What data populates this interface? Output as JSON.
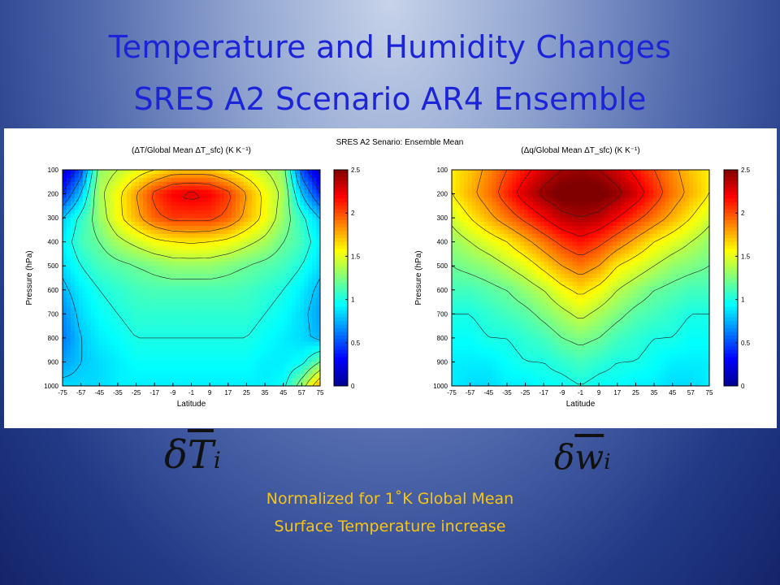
{
  "slide": {
    "title_line1": "Temperature and Humidity Changes",
    "title_line2": "SRES A2 Scenario AR4 Ensemble",
    "figure_title": "SRES A2 Senario: Ensemble Mean",
    "symbol_left": "δT̄i",
    "symbol_right": "δw̄i",
    "caption_line1": "Normalized for 1˚K Global Mean",
    "caption_line2": "Surface Temperature increase"
  },
  "colors": {
    "title": "#1c24d8",
    "caption": "#f5c518",
    "colormap": [
      "#00008f",
      "#0000ff",
      "#0080ff",
      "#00ffff",
      "#80ff80",
      "#ffff00",
      "#ff8000",
      "#ff0000",
      "#800000"
    ]
  },
  "chart_data": [
    {
      "type": "heatmap",
      "title": "(ΔT/Global Mean ΔT_sfc) (K K⁻¹)",
      "xlabel": "Latitude",
      "ylabel": "Pressure (hPa)",
      "x_ticks": [
        "-75",
        "-57",
        "-45",
        "-35",
        "-25",
        "-17",
        "-9",
        "-1",
        "9",
        "17",
        "25",
        "35",
        "45",
        "57",
        "75"
      ],
      "y_ticks": [
        "100",
        "200",
        "300",
        "400",
        "500",
        "600",
        "700",
        "800",
        "900",
        "1000"
      ],
      "colorbar_ticks": [
        "0",
        "0.5",
        "1",
        "1.5",
        "2",
        "2.5"
      ],
      "colorbar_range": [
        0,
        2.5
      ],
      "contour_levels": [
        0.2,
        0.4,
        0.6,
        0.8,
        1.0,
        1.2,
        1.4,
        1.6,
        1.8,
        2.0,
        2.2
      ],
      "grid": [
        [
          0.15,
          0.5,
          1.3,
          1.4,
          1.5,
          1.6,
          1.7,
          1.7,
          1.7,
          1.6,
          1.5,
          1.4,
          1.3,
          0.5,
          0.15
        ],
        [
          0.4,
          0.8,
          1.35,
          1.55,
          1.8,
          2.05,
          2.2,
          2.25,
          2.2,
          2.05,
          1.8,
          1.55,
          1.35,
          0.8,
          0.4
        ],
        [
          0.8,
          1.05,
          1.3,
          1.55,
          1.75,
          1.95,
          2.05,
          2.05,
          2.05,
          1.95,
          1.75,
          1.55,
          1.3,
          1.05,
          0.8
        ],
        [
          0.9,
          1.1,
          1.2,
          1.35,
          1.45,
          1.55,
          1.6,
          1.62,
          1.6,
          1.55,
          1.45,
          1.35,
          1.2,
          1.1,
          0.9
        ],
        [
          0.85,
          1.0,
          1.1,
          1.15,
          1.2,
          1.25,
          1.3,
          1.3,
          1.3,
          1.25,
          1.2,
          1.15,
          1.1,
          1.0,
          0.85
        ],
        [
          0.75,
          0.9,
          1.0,
          1.05,
          1.1,
          1.12,
          1.12,
          1.12,
          1.12,
          1.12,
          1.1,
          1.05,
          1.0,
          0.9,
          0.75
        ],
        [
          0.65,
          0.85,
          0.95,
          1.0,
          1.05,
          1.05,
          1.05,
          1.05,
          1.05,
          1.05,
          1.05,
          1.0,
          0.95,
          0.85,
          0.7
        ],
        [
          0.6,
          0.8,
          0.9,
          0.95,
          1.0,
          1.0,
          1.0,
          1.0,
          1.0,
          1.0,
          1.0,
          0.95,
          0.9,
          0.85,
          0.75
        ],
        [
          0.7,
          0.8,
          0.85,
          0.9,
          0.95,
          0.95,
          0.95,
          0.95,
          0.95,
          0.95,
          0.95,
          0.9,
          0.9,
          0.95,
          1.2
        ],
        [
          0.85,
          0.85,
          0.85,
          0.9,
          0.9,
          0.9,
          0.9,
          0.9,
          0.9,
          0.9,
          0.9,
          0.9,
          0.95,
          1.3,
          1.8
        ]
      ]
    },
    {
      "type": "heatmap",
      "title": "(Δq/Global Mean ΔT_sfc) (K K⁻¹)",
      "xlabel": "Latitude",
      "ylabel": "Pressure (hPa)",
      "x_ticks": [
        "-75",
        "-57",
        "-45",
        "-35",
        "-25",
        "-17",
        "-9",
        "-1",
        "9",
        "17",
        "25",
        "35",
        "45",
        "57",
        "75"
      ],
      "y_ticks": [
        "100",
        "200",
        "300",
        "400",
        "500",
        "600",
        "700",
        "800",
        "900",
        "1000"
      ],
      "colorbar_ticks": [
        "0",
        "0.5",
        "1",
        "1.5",
        "2",
        "2.5"
      ],
      "colorbar_range": [
        0,
        2.5
      ],
      "contour_levels": [
        0.2,
        0.4,
        0.6,
        0.8,
        1.0,
        1.2,
        1.4,
        1.6,
        1.8,
        2.0,
        2.2,
        2.4
      ],
      "grid": [
        [
          1.6,
          1.7,
          1.85,
          2.0,
          2.15,
          2.3,
          2.4,
          2.45,
          2.4,
          2.3,
          2.15,
          2.0,
          1.85,
          1.7,
          1.6
        ],
        [
          1.6,
          1.75,
          1.9,
          2.1,
          2.3,
          2.45,
          2.55,
          2.55,
          2.55,
          2.45,
          2.3,
          2.1,
          1.9,
          1.75,
          1.6
        ],
        [
          1.45,
          1.6,
          1.75,
          1.9,
          2.05,
          2.2,
          2.35,
          2.4,
          2.35,
          2.2,
          2.05,
          1.9,
          1.75,
          1.6,
          1.45
        ],
        [
          1.3,
          1.4,
          1.5,
          1.6,
          1.75,
          1.9,
          2.05,
          2.15,
          2.05,
          1.9,
          1.75,
          1.6,
          1.5,
          1.4,
          1.3
        ],
        [
          1.2,
          1.25,
          1.3,
          1.4,
          1.5,
          1.65,
          1.8,
          1.9,
          1.8,
          1.6,
          1.5,
          1.4,
          1.3,
          1.25,
          1.2
        ],
        [
          1.1,
          1.1,
          1.15,
          1.2,
          1.3,
          1.4,
          1.55,
          1.65,
          1.55,
          1.4,
          1.3,
          1.2,
          1.15,
          1.1,
          1.1
        ],
        [
          1.0,
          1.0,
          1.05,
          1.1,
          1.15,
          1.25,
          1.35,
          1.45,
          1.35,
          1.25,
          1.15,
          1.1,
          1.05,
          1.0,
          1.0
        ],
        [
          0.95,
          0.95,
          1.0,
          1.0,
          1.05,
          1.1,
          1.2,
          1.25,
          1.2,
          1.1,
          1.05,
          1.0,
          1.0,
          0.95,
          0.95
        ],
        [
          0.9,
          0.9,
          0.9,
          0.95,
          1.0,
          1.0,
          1.05,
          1.1,
          1.05,
          1.0,
          1.0,
          0.95,
          0.9,
          0.9,
          0.9
        ],
        [
          0.9,
          0.85,
          0.85,
          0.9,
          0.9,
          0.95,
          0.95,
          1.0,
          0.95,
          0.95,
          0.9,
          0.9,
          0.85,
          0.85,
          0.9
        ]
      ]
    }
  ]
}
